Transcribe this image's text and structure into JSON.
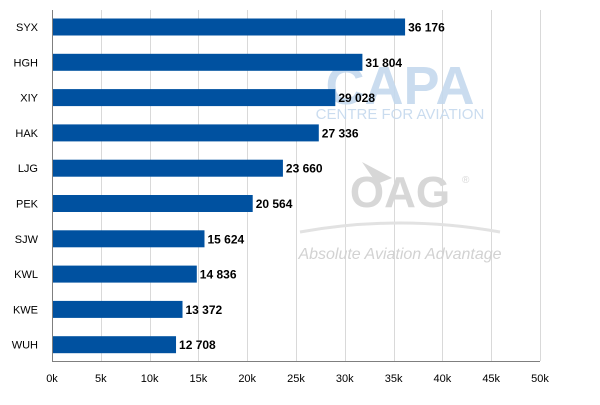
{
  "chart_data": {
    "type": "bar",
    "orientation": "horizontal",
    "categories": [
      "SYX",
      "HGH",
      "XIY",
      "HAK",
      "LJG",
      "PEK",
      "SJW",
      "KWL",
      "KWE",
      "WUH"
    ],
    "values": [
      36176,
      31804,
      29028,
      27336,
      23660,
      20564,
      15624,
      14836,
      13372,
      12708
    ],
    "value_labels": [
      "36 176",
      "31 804",
      "29 028",
      "27 336",
      "23 660",
      "20 564",
      "15 624",
      "14 836",
      "13 372",
      "12 708"
    ],
    "title": "",
    "xlabel": "",
    "ylabel": "",
    "xlim": [
      0,
      50000
    ],
    "x_ticks": [
      0,
      5000,
      10000,
      15000,
      20000,
      25000,
      30000,
      35000,
      40000,
      45000,
      50000
    ],
    "x_tick_labels": [
      "0k",
      "5k",
      "10k",
      "15k",
      "20k",
      "25k",
      "30k",
      "35k",
      "40k",
      "45k",
      "50k"
    ],
    "grid": "vertical",
    "legend": "none",
    "bar_color": "#0051a0"
  },
  "watermark": {
    "capa_logo": "CAPA",
    "capa_tagline": "CENTRE FOR AVIATION",
    "oag_logo": "OAG",
    "oag_tagline": "Absolute Aviation Advantage",
    "registered_mark": "®"
  },
  "colors": {
    "grid": "#d9d9d9",
    "axis": "#7f7f7f",
    "text": "#000000",
    "watermark_blue": "#c5d9ee",
    "watermark_grey": "#d7d7d7"
  }
}
